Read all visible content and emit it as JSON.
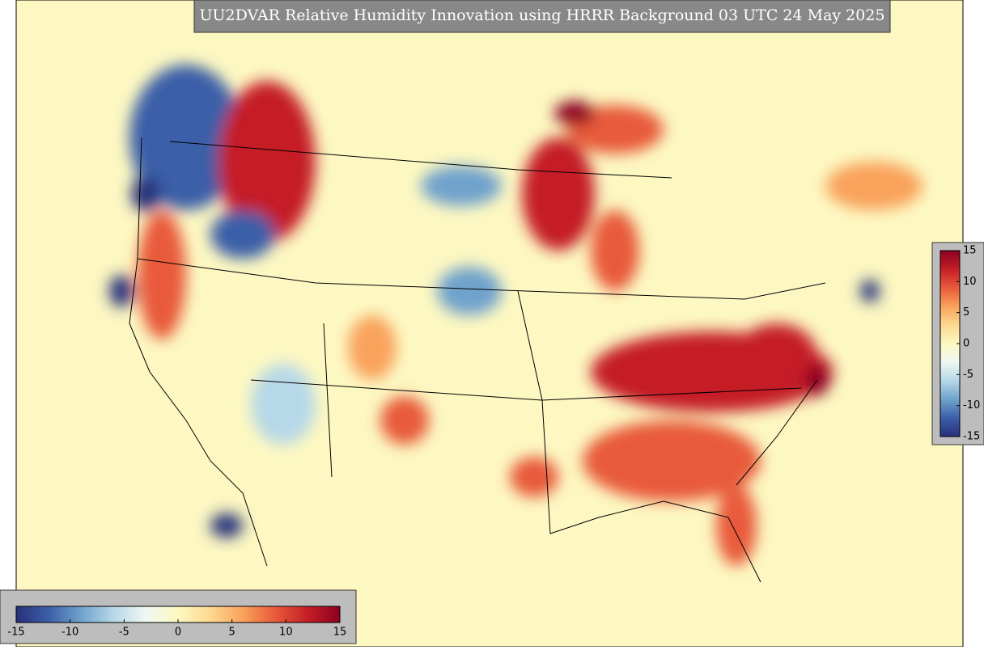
{
  "title": "UU2DVAR Relative Humidity Innovation using HRRR Background 03 UTC 24 May 2025",
  "colormap": [
    "#28307a",
    "#3b5fa8",
    "#6fa2cc",
    "#b6d8e8",
    "#eef7f2",
    "#fdf8c0",
    "#fdd890",
    "#f9a25c",
    "#e85a3a",
    "#c51f27",
    "#8c0020"
  ],
  "colorbars": [
    {
      "orientation": "vertical",
      "range": [
        -15,
        15
      ],
      "ticks": [
        15,
        10,
        5,
        0,
        -5,
        -10,
        -15
      ]
    },
    {
      "orientation": "horizontal",
      "range": [
        -15,
        15
      ],
      "ticks": [
        -15,
        -10,
        -5,
        0,
        5,
        10,
        15
      ]
    }
  ]
}
